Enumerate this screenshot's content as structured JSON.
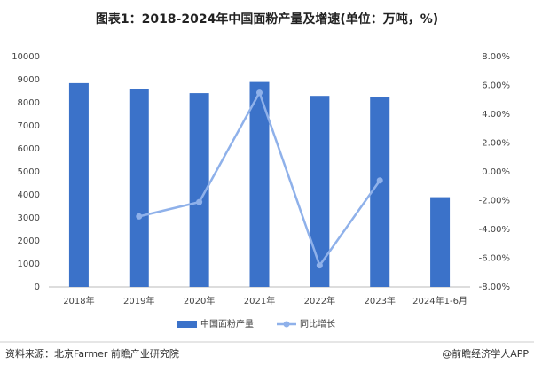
{
  "chart_data": {
    "type": "bar",
    "title": "图表1：2018-2024年中国面粉产量及增速(单位：万吨，%)",
    "categories": [
      "2018年",
      "2019年",
      "2020年",
      "2021年",
      "2022年",
      "2023年",
      "2024年1-6月"
    ],
    "series": [
      {
        "name": "中国面粉产量",
        "type": "bar",
        "color": "#3b72c9",
        "values": [
          8850,
          8600,
          8420,
          8900,
          8300,
          8260,
          3900
        ]
      },
      {
        "name": "同比增长",
        "type": "line",
        "axis": "y2",
        "color": "#8fb1ea",
        "values": [
          null,
          -3.1,
          -2.1,
          5.5,
          -6.5,
          -0.6,
          null
        ]
      }
    ],
    "ylim": [
      0,
      10000
    ],
    "yticks": [
      0,
      1000,
      2000,
      3000,
      4000,
      5000,
      6000,
      7000,
      8000,
      9000,
      10000
    ],
    "y2lim": [
      -8,
      8
    ],
    "y2ticks": [
      {
        "value": -8,
        "label": "-8.00%"
      },
      {
        "value": -6,
        "label": "-6.00%"
      },
      {
        "value": -4,
        "label": "-4.00%"
      },
      {
        "value": -2,
        "label": "-2.00%"
      },
      {
        "value": 0,
        "label": "0.00%"
      },
      {
        "value": 2,
        "label": "2.00%"
      },
      {
        "value": 4,
        "label": "4.00%"
      },
      {
        "value": 6,
        "label": "6.00%"
      },
      {
        "value": 8,
        "label": "8.00%"
      }
    ],
    "legend": "bottom",
    "source": "资料来源：北京Farmer 前瞻产业研究院",
    "credit": "@前瞻经济学人APP"
  }
}
